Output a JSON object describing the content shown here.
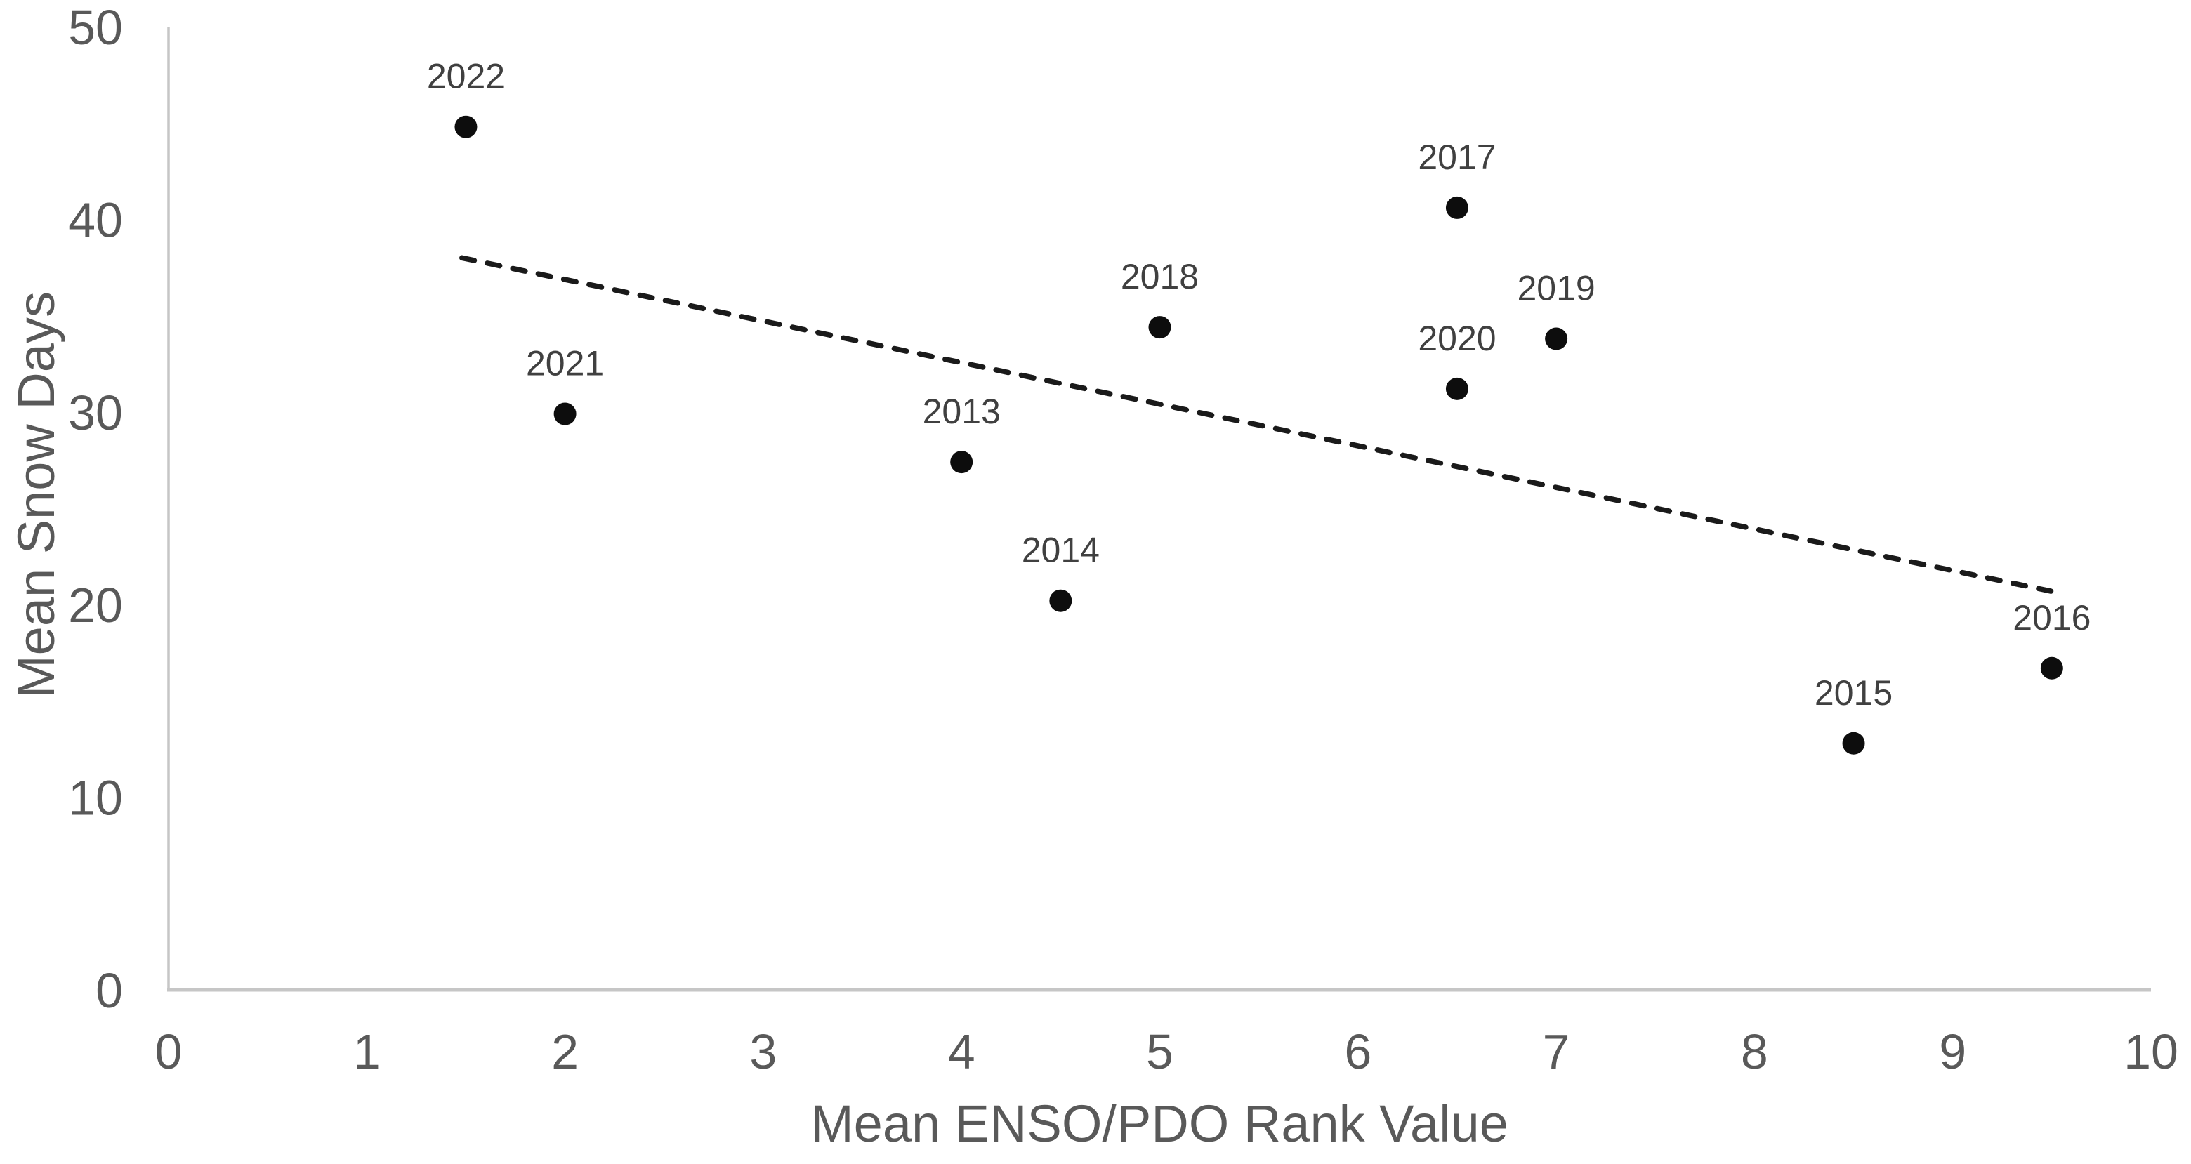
{
  "chart_data": {
    "type": "scatter",
    "title": "",
    "xlabel": "Mean ENSO/PDO Rank Value",
    "ylabel": "Mean Snow Days",
    "xlim": [
      0,
      10
    ],
    "ylim": [
      0,
      50
    ],
    "x_ticks": [
      0,
      1,
      2,
      3,
      4,
      5,
      6,
      7,
      8,
      9,
      10
    ],
    "y_ticks": [
      0,
      10,
      20,
      30,
      40,
      50
    ],
    "grid": false,
    "legend": false,
    "points": [
      {
        "label": "2022",
        "x": 1.5,
        "y": 44.8
      },
      {
        "label": "2021",
        "x": 2.0,
        "y": 29.9
      },
      {
        "label": "2013",
        "x": 4.0,
        "y": 27.4
      },
      {
        "label": "2014",
        "x": 4.5,
        "y": 20.2
      },
      {
        "label": "2018",
        "x": 5.0,
        "y": 34.4
      },
      {
        "label": "2017",
        "x": 6.5,
        "y": 40.6
      },
      {
        "label": "2020",
        "x": 6.5,
        "y": 31.2
      },
      {
        "label": "2019",
        "x": 7.0,
        "y": 33.8
      },
      {
        "label": "2015",
        "x": 8.5,
        "y": 12.8
      },
      {
        "label": "2016",
        "x": 9.5,
        "y": 16.7
      }
    ],
    "trendline": {
      "style": "dashed",
      "x_start": 1.48,
      "y_start": 38.0,
      "x_end": 9.54,
      "y_end": 20.6
    },
    "colors": {
      "point": "#0d0d0d",
      "point_label": "#404040",
      "trendline": "#1a1a1a",
      "axis_line": "#c6c6c6",
      "tick_label": "#595959",
      "axis_title": "#595959",
      "background": "#ffffff"
    }
  }
}
